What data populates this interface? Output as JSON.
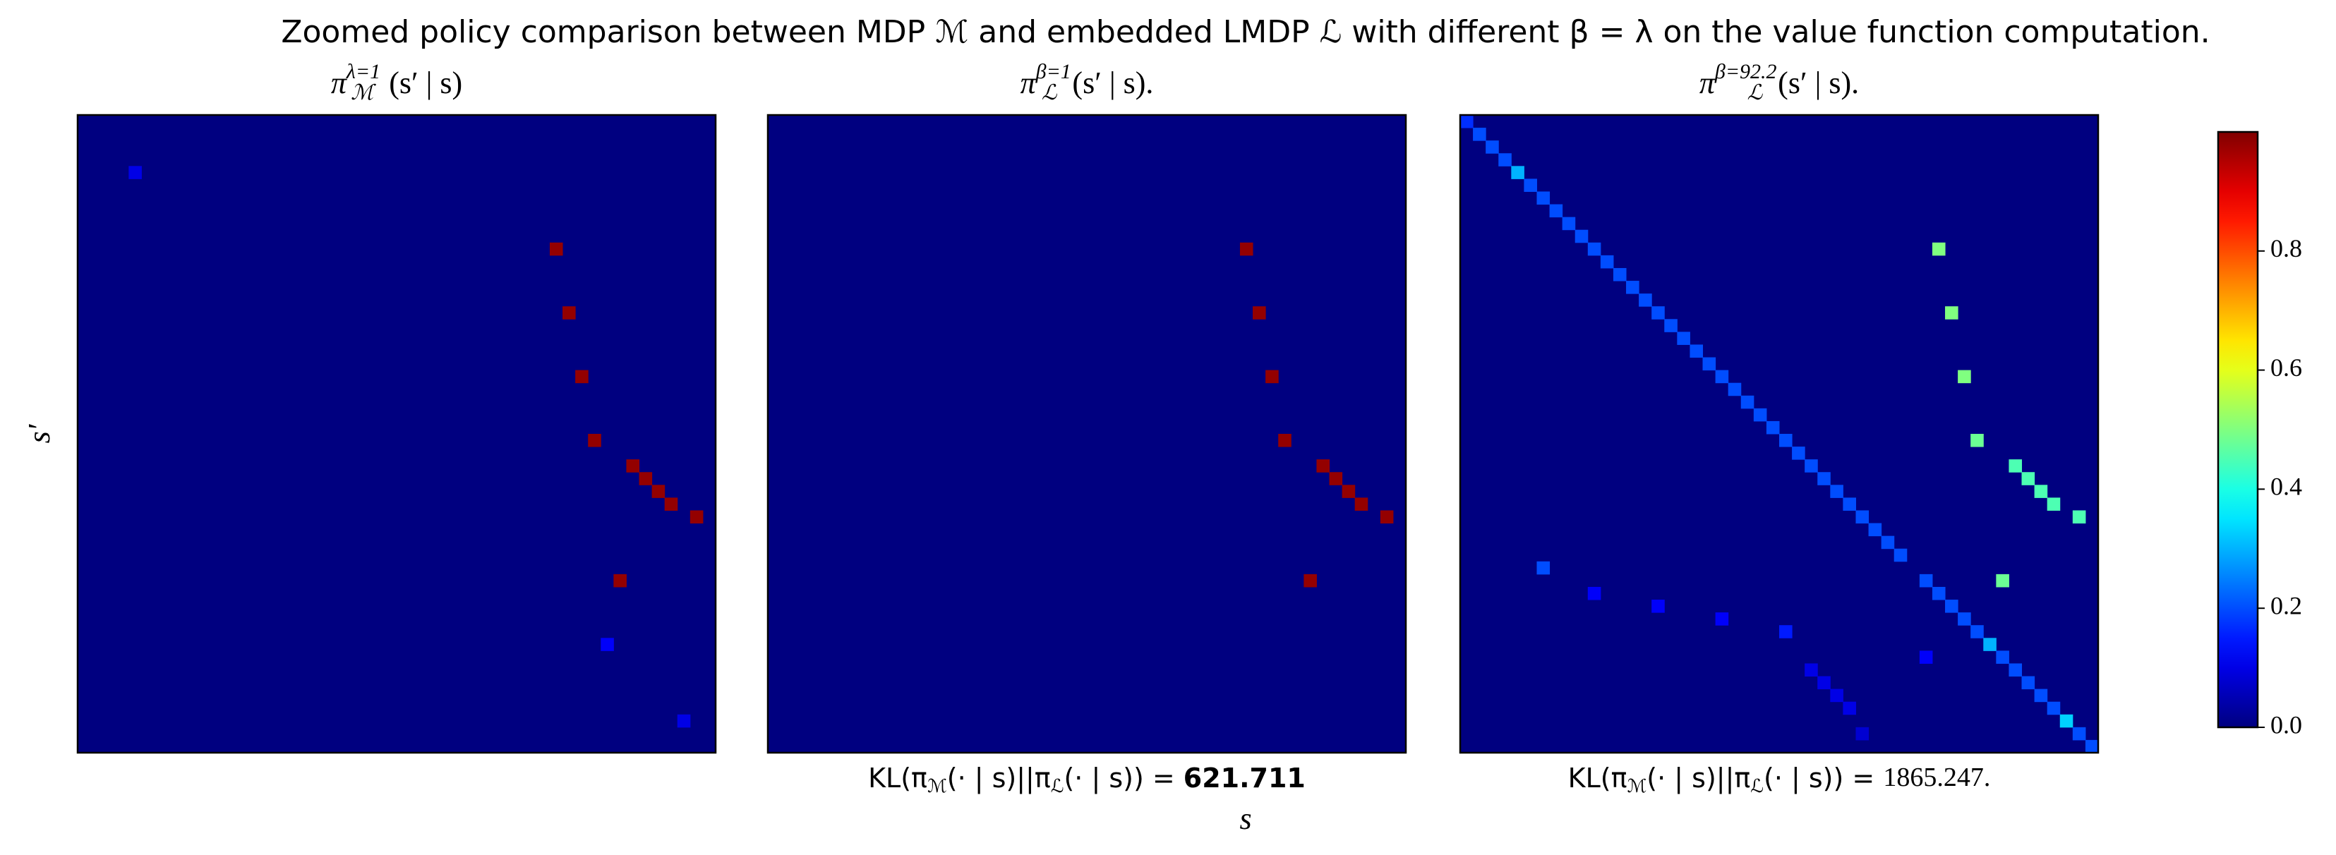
{
  "title": "Zoomed policy comparison between MDP ℳ and embedded LMDP ℒ with different β = λ on the value function computation.",
  "xlabel": "s",
  "ylabel": "s′",
  "colorbar": {
    "clim": [
      0,
      1
    ],
    "ticks": [
      {
        "value": 0,
        "label": "0.0"
      },
      0.2,
      0.4,
      0.6,
      0.8
    ]
  },
  "chart_data": [
    {
      "type": "heatmap",
      "title": {
        "symbol": "π",
        "subscript": "ℳ",
        "superscript": "λ=1",
        "argument": "(s′ | s)"
      },
      "shape": [
        50,
        50
      ],
      "background": 0,
      "cells": [
        [
          4,
          4,
          0.1
        ],
        [
          10,
          37,
          0.98
        ],
        [
          15,
          38,
          0.98
        ],
        [
          20,
          39,
          0.98
        ],
        [
          25,
          40,
          0.98
        ],
        [
          27,
          43,
          0.98
        ],
        [
          28,
          44,
          0.98
        ],
        [
          29,
          45,
          0.98
        ],
        [
          30,
          46,
          0.98
        ],
        [
          31,
          48,
          0.98
        ],
        [
          36,
          42,
          0.98
        ],
        [
          41,
          41,
          0.12
        ],
        [
          47,
          47,
          0.1
        ]
      ]
    },
    {
      "type": "heatmap",
      "title": {
        "symbol": "π",
        "subscript": "ℒ",
        "superscript": "β=1",
        "argument": "(s′ | s)."
      },
      "shape": [
        50,
        50
      ],
      "background": 0,
      "cells": [
        [
          10,
          37,
          0.98
        ],
        [
          15,
          38,
          0.98
        ],
        [
          20,
          39,
          0.98
        ],
        [
          25,
          40,
          0.98
        ],
        [
          27,
          43,
          0.98
        ],
        [
          28,
          44,
          0.98
        ],
        [
          29,
          45,
          0.98
        ],
        [
          30,
          46,
          0.98
        ],
        [
          31,
          48,
          0.98
        ],
        [
          36,
          42,
          0.98
        ]
      ],
      "kl_parts": [
        "KL(π",
        "ℳ",
        "(· | s)||π",
        "ℒ",
        "(· | s)) = "
      ],
      "kl_value": 621.711
    },
    {
      "type": "heatmap",
      "title": {
        "symbol": "π",
        "subscript": "ℒ",
        "superscript": "β=92.2",
        "argument": "(s′ | s)."
      },
      "shape": [
        50,
        50
      ],
      "background": 0,
      "cells": [
        [
          0,
          0,
          0.17
        ],
        [
          1,
          1,
          0.2
        ],
        [
          2,
          2,
          0.2
        ],
        [
          3,
          3,
          0.2
        ],
        [
          4,
          4,
          0.3
        ],
        [
          5,
          5,
          0.2
        ],
        [
          6,
          6,
          0.2
        ],
        [
          7,
          7,
          0.2
        ],
        [
          8,
          8,
          0.2
        ],
        [
          9,
          9,
          0.2
        ],
        [
          10,
          10,
          0.2
        ],
        [
          11,
          11,
          0.2
        ],
        [
          12,
          12,
          0.2
        ],
        [
          13,
          13,
          0.2
        ],
        [
          14,
          14,
          0.2
        ],
        [
          15,
          15,
          0.2
        ],
        [
          16,
          16,
          0.2
        ],
        [
          17,
          17,
          0.2
        ],
        [
          18,
          18,
          0.2
        ],
        [
          19,
          19,
          0.2
        ],
        [
          20,
          20,
          0.2
        ],
        [
          21,
          21,
          0.2
        ],
        [
          22,
          22,
          0.2
        ],
        [
          23,
          23,
          0.2
        ],
        [
          24,
          24,
          0.2
        ],
        [
          25,
          25,
          0.2
        ],
        [
          26,
          26,
          0.2
        ],
        [
          27,
          27,
          0.2
        ],
        [
          28,
          28,
          0.2
        ],
        [
          29,
          29,
          0.2
        ],
        [
          30,
          30,
          0.2
        ],
        [
          31,
          31,
          0.2
        ],
        [
          32,
          32,
          0.2
        ],
        [
          33,
          33,
          0.2
        ],
        [
          34,
          34,
          0.2
        ],
        [
          36,
          36,
          0.2
        ],
        [
          37,
          37,
          0.2
        ],
        [
          38,
          38,
          0.2
        ],
        [
          39,
          39,
          0.2
        ],
        [
          40,
          40,
          0.2
        ],
        [
          41,
          41,
          0.3
        ],
        [
          42,
          42,
          0.2
        ],
        [
          43,
          43,
          0.2
        ],
        [
          44,
          44,
          0.2
        ],
        [
          45,
          45,
          0.2
        ],
        [
          46,
          46,
          0.2
        ],
        [
          47,
          47,
          0.33
        ],
        [
          48,
          48,
          0.2
        ],
        [
          49,
          49,
          0.2
        ],
        [
          35,
          6,
          0.2
        ],
        [
          37,
          10,
          0.12
        ],
        [
          38,
          15,
          0.12
        ],
        [
          39,
          20,
          0.12
        ],
        [
          40,
          25,
          0.15
        ],
        [
          42,
          36,
          0.12
        ],
        [
          43,
          27,
          0.1
        ],
        [
          44,
          28,
          0.1
        ],
        [
          45,
          29,
          0.1
        ],
        [
          46,
          30,
          0.1
        ],
        [
          48,
          31,
          0.08
        ],
        [
          10,
          37,
          0.5
        ],
        [
          15,
          38,
          0.5
        ],
        [
          20,
          39,
          0.5
        ],
        [
          25,
          40,
          0.48
        ],
        [
          27,
          43,
          0.45
        ],
        [
          28,
          44,
          0.45
        ],
        [
          29,
          45,
          0.45
        ],
        [
          30,
          46,
          0.45
        ],
        [
          31,
          48,
          0.45
        ],
        [
          36,
          42,
          0.48
        ]
      ],
      "kl_parts": [
        "KL(π",
        "ℳ",
        "(· | s)||π",
        "ℒ",
        "(· | s)) = "
      ],
      "kl_value": {
        "value": 1865.247,
        "label": "1865.247."
      }
    }
  ]
}
